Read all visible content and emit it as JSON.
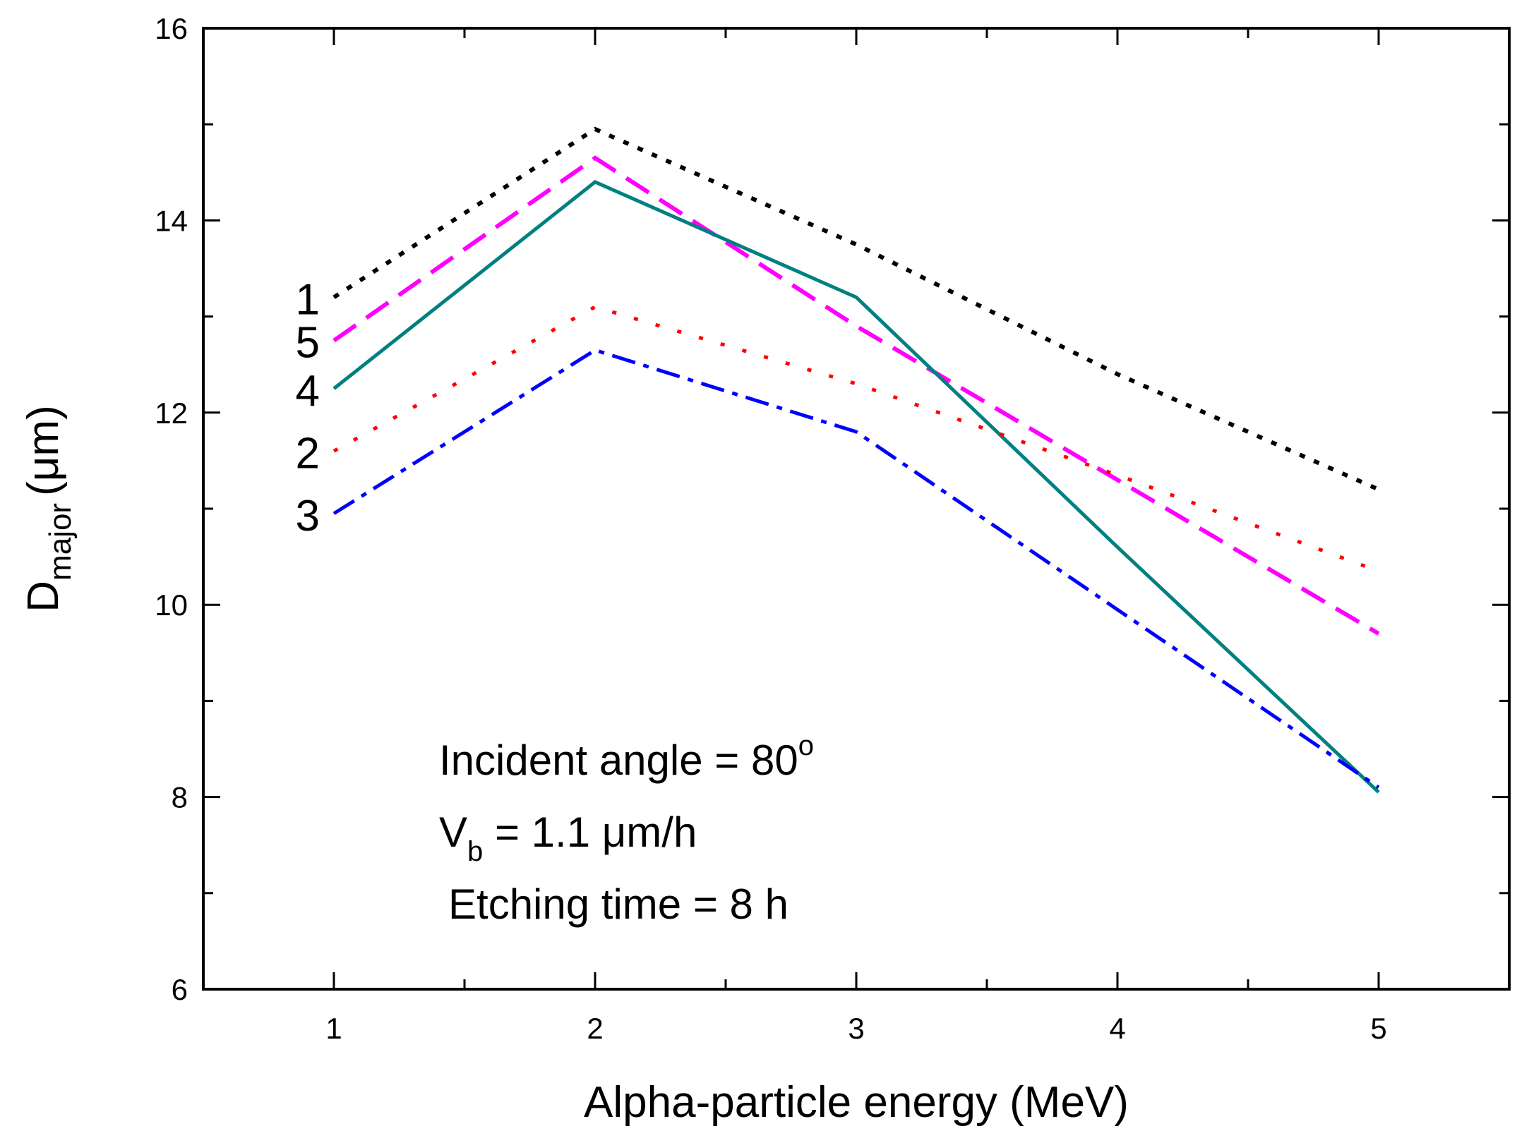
{
  "chart_data": {
    "type": "line",
    "title": "",
    "xlabel": "Alpha-particle energy (MeV)",
    "ylabel": "D",
    "ylabel_subscript": "major",
    "ylabel_unit": "(μm)",
    "xlim": [
      0.5,
      5.5
    ],
    "ylim": [
      6,
      16
    ],
    "xticks": [
      1,
      2,
      3,
      4,
      5
    ],
    "yticks": [
      6,
      8,
      10,
      12,
      14,
      16
    ],
    "grid": false,
    "x": [
      1,
      2,
      3,
      4,
      5
    ],
    "series": [
      {
        "name": "1",
        "label": "1",
        "style": "dotted",
        "color": "#000000",
        "values": [
          13.2,
          14.95,
          13.75,
          12.4,
          11.2
        ]
      },
      {
        "name": "5",
        "label": "5",
        "style": "dashed",
        "color": "#ff00ff",
        "values": [
          12.75,
          14.65,
          12.9,
          11.3,
          9.7
        ]
      },
      {
        "name": "4",
        "label": "4",
        "style": "solid",
        "color": "#008080",
        "values": [
          12.25,
          14.4,
          13.2,
          10.6,
          8.05
        ]
      },
      {
        "name": "2",
        "label": "2",
        "style": "sparse-dotted",
        "color": "#ff0000",
        "values": [
          11.6,
          13.1,
          12.3,
          11.35,
          10.35
        ]
      },
      {
        "name": "3",
        "label": "3",
        "style": "dash-dot",
        "color": "#0000ff",
        "values": [
          10.95,
          12.65,
          11.8,
          9.95,
          8.1
        ]
      }
    ],
    "annotations": {
      "incident_angle": "Incident angle = 80",
      "incident_angle_sup": "o",
      "vb_symbol": "V",
      "vb_sub": "b",
      "vb_value": " = 1.1 μm/h",
      "etching_time": "Etching time = 8 h"
    }
  }
}
